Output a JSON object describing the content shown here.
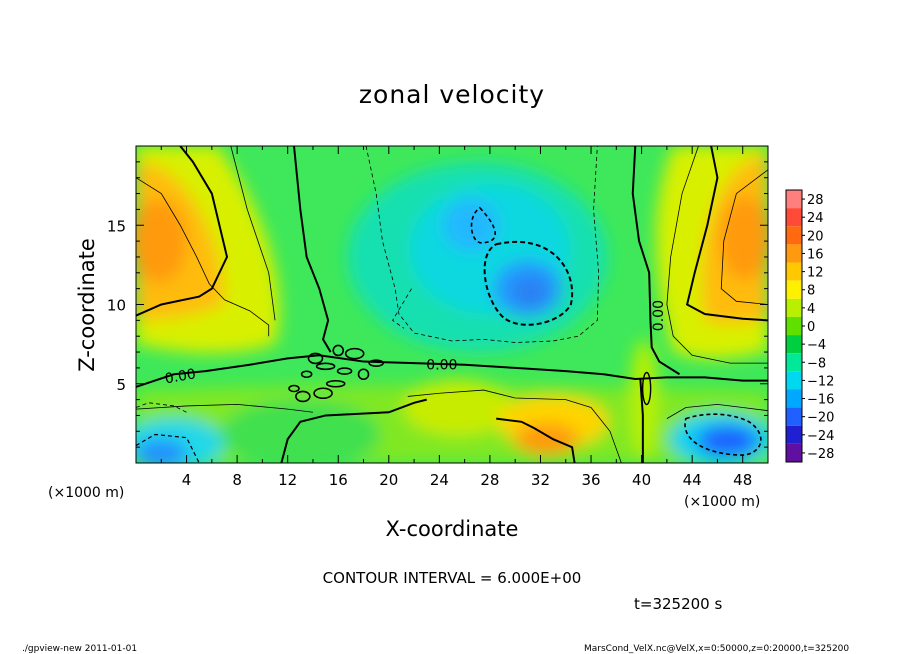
{
  "chart_data": {
    "type": "heatmap",
    "title": "zonal velocity",
    "xlabel": "X-coordinate",
    "ylabel": "Z-coordinate",
    "x_units_note": "(×1000 m)",
    "y_units_note": "(×1000 m)",
    "xlim": [
      0,
      50
    ],
    "ylim": [
      0,
      20
    ],
    "x_ticks": [
      "4",
      "8",
      "12",
      "16",
      "20",
      "24",
      "28",
      "32",
      "36",
      "40",
      "44",
      "48"
    ],
    "x_tick_values": [
      4,
      8,
      12,
      16,
      20,
      24,
      28,
      32,
      36,
      40,
      44,
      48
    ],
    "y_ticks": [
      "5",
      "10",
      "15"
    ],
    "y_tick_values": [
      5,
      10,
      15
    ],
    "colorbar": {
      "labels": [
        "28",
        "24",
        "20",
        "16",
        "12",
        "8",
        "4",
        "0",
        "−4",
        "−8",
        "−12",
        "−16",
        "−20",
        "−24",
        "−28"
      ],
      "colors": [
        "#ff7f7f",
        "#ff4a3a",
        "#ff6a10",
        "#ff9a10",
        "#ffc800",
        "#fff000",
        "#b8f000",
        "#60e000",
        "#00d040",
        "#00e898",
        "#00d8f0",
        "#00a8ff",
        "#2060ff",
        "#2020d0",
        "#6010a0"
      ]
    },
    "contour_labels": [
      "0.00",
      "0.00",
      "0.00"
    ],
    "contour_interval_text": "CONTOUR INTERVAL = 6.000E+00",
    "time_text": "t=325200 s",
    "features": [
      {
        "kind": "max",
        "x": 2,
        "z": 14,
        "value": 17
      },
      {
        "kind": "max",
        "x": 48,
        "z": 14,
        "value": 17
      },
      {
        "kind": "min",
        "x": 31,
        "z": 11,
        "value": -12
      },
      {
        "kind": "min",
        "x": 26,
        "z": 15,
        "value": -10
      },
      {
        "kind": "min",
        "x": 47,
        "z": 1.3,
        "value": -16
      },
      {
        "kind": "max",
        "x": 32,
        "z": 1.3,
        "value": 16
      }
    ]
  },
  "footer": {
    "left": "./gpview-new   2011-01-01",
    "right": "MarsCond_VelX.nc@VelX,x=0:50000,z=0:20000,t=325200"
  }
}
